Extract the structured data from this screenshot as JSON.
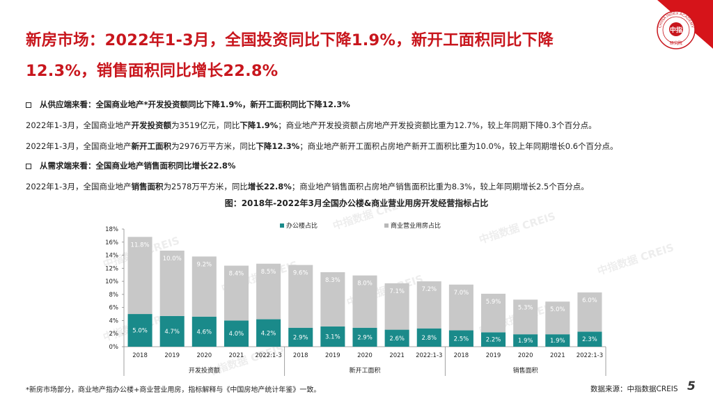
{
  "title": {
    "line1": "新房市场：2022年1-3月，全国投资同比下降1.9%，新开工面积同比下降",
    "line2": "12.3%，销售面积同比增长22.8%"
  },
  "supply": {
    "heading": "从供应端来看：全国商业地产*开发投资额同比下降1.9%，新开工面积同比下降12.3%",
    "p1": {
      "a": "2022年1-3月，全国商业地产",
      "b": "开发投资额",
      "c": "为3519亿元，同比",
      "d": "下降1.9%",
      "e": "；商业地产开发投资额占房地产开发投资额比重为12.7%，较上年同期下降0.3个百分点。"
    },
    "p2": {
      "a": "2022年1-3月，全国商业地产",
      "b": "新开工面积",
      "c": "为2976万平方米，同比",
      "d": "下降12.3%",
      "e": "；商业地产新开工面积占房地产新开工面积比重为10.0%，较上年同期增长0.6个百分点。"
    }
  },
  "demand": {
    "heading": "从需求端来看：全国商业地产销售面积同比增长22.8%",
    "p1": {
      "a": "2022年1-3月，全国商业地产",
      "b": "销售面积",
      "c": "为2578万平方米，同比",
      "d": "增长22.8%",
      "e": "；商业地产销售面积占房地产销售面积比重为8.3%，较上年同期增长2.5个百分点。"
    }
  },
  "chart_data": {
    "type": "bar",
    "stacked": true,
    "title": "图：2018年-2022年3月全国办公楼&商业营业用房开发经营指标占比",
    "groups": [
      {
        "name": "开发投资额",
        "categories": [
          "2018",
          "2019",
          "2020",
          "2021",
          "2022:1-3"
        ]
      },
      {
        "name": "新开工面积",
        "categories": [
          "2018",
          "2019",
          "2020",
          "2021",
          "2022:1-3"
        ]
      },
      {
        "name": "销售面积",
        "categories": [
          "2018",
          "2019",
          "2020",
          "2021",
          "2022:1-3"
        ]
      }
    ],
    "series": [
      {
        "name": "办公楼占比",
        "color": "#1a8a8a",
        "values": [
          5.0,
          4.7,
          4.6,
          4.0,
          4.2,
          2.9,
          3.1,
          2.9,
          2.6,
          2.8,
          2.5,
          2.2,
          1.9,
          1.9,
          2.3
        ]
      },
      {
        "name": "商业营业用房占比",
        "color": "#c8c8c8",
        "values": [
          11.8,
          10.0,
          9.2,
          8.4,
          8.5,
          9.6,
          8.3,
          8.0,
          7.1,
          7.2,
          7.0,
          5.9,
          5.3,
          5.0,
          6.0
        ]
      }
    ],
    "ylim": [
      0,
      18
    ],
    "yticks": [
      "0%",
      "2%",
      "4%",
      "6%",
      "8%",
      "10%",
      "12%",
      "14%",
      "16%",
      "18%"
    ],
    "legend_position": "top",
    "grid": false,
    "watermark": "中指数据 CREIS"
  },
  "footer": {
    "footnote": "*新房市场部分，商业地产指办公楼+商业营业用房，指标解释与《中国房地产统计年鉴》一致。",
    "source": "数据来源：中指数据CREIS",
    "page_number": "5"
  },
  "logo": {
    "text_top": "CHINA INDEX ACADEMY",
    "center": "中指",
    "bottom": "研究院"
  },
  "colors": {
    "brand_red": "#c8161d",
    "office": "#1a8a8a",
    "retail": "#c8c8c8"
  }
}
